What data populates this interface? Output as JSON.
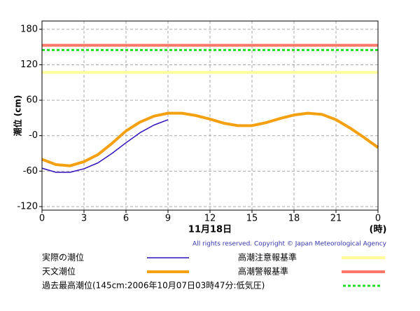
{
  "chart_data": {
    "type": "line",
    "ylabel": "潮位 (cm)",
    "xlabel": "11月18日",
    "xunit": "(時)",
    "credit": "All rights reserved. Copyright © Japan Meteorological Agency",
    "x": [
      0,
      1,
      2,
      3,
      4,
      5,
      6,
      7,
      8,
      9,
      10,
      11,
      12,
      13,
      14,
      15,
      16,
      17,
      18,
      19,
      20,
      21,
      22,
      23,
      24
    ],
    "series": [
      {
        "name": "実際の潮位",
        "color": "#3311bb",
        "width": 1.5,
        "values": [
          -55,
          -62,
          -62,
          -56,
          -46,
          -30,
          -12,
          5,
          18,
          27,
          null,
          null,
          null,
          null,
          null,
          null,
          null,
          null,
          null,
          null,
          null,
          null,
          null,
          null,
          null
        ]
      },
      {
        "name": "天文潮位",
        "color": "#f5a010",
        "width": 4,
        "values": [
          -40,
          -49,
          -51,
          -44,
          -32,
          -13,
          8,
          23,
          33,
          38,
          38,
          34,
          28,
          21,
          17,
          17,
          22,
          29,
          35,
          38,
          36,
          27,
          13,
          -3,
          -20
        ]
      }
    ],
    "reference_lines": [
      {
        "name": "高潮注意報基準",
        "color": "#ffff99",
        "value": 107,
        "width": 4
      },
      {
        "name": "高潮警報基準",
        "color": "#ff7766",
        "value": 153,
        "width": 4
      },
      {
        "name": "過去最高潮位(145cm:2006年10月07日03時47分:低気圧)",
        "color": "#22dd22",
        "value": 145,
        "width": 3,
        "dashed": true
      }
    ],
    "xlim": [
      0,
      24
    ],
    "xticks": [
      0,
      3,
      6,
      9,
      12,
      15,
      18,
      21,
      {
        "value": 24,
        "label": "0"
      }
    ],
    "ylim": [
      -126,
      194
    ],
    "yticks": [
      180,
      120,
      60,
      {
        "value": 0,
        "label": "-0"
      },
      -60,
      -120
    ],
    "grid": true
  }
}
